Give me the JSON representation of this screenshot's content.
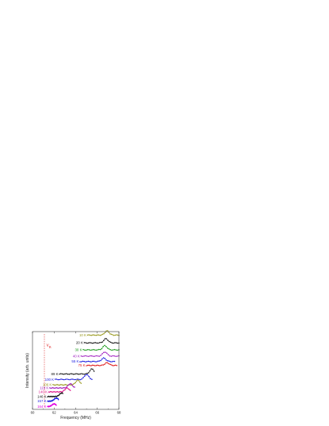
{
  "chart_data": {
    "type": "line",
    "title": "",
    "xlabel": "Frequency (MHz)",
    "ylabel": "Intensity (arb. units)",
    "xlim": [
      60,
      68
    ],
    "x_ticks": [
      "60",
      "62",
      "64",
      "66",
      "68"
    ],
    "grid": false,
    "reference_line": {
      "label": "ν",
      "subscript": "B",
      "x": 61.1,
      "color": "#e03030"
    },
    "series": [
      {
        "name": "10 K",
        "color": "#9a9a20",
        "baseline": 0.955,
        "x_start": 65.1,
        "x_end": 68.0,
        "peak_x": 66.9,
        "peak": 0.055
      },
      {
        "name": "20 K",
        "color": "#111111",
        "baseline": 0.855,
        "x_start": 64.8,
        "x_end": 68.0,
        "peak_x": 66.8,
        "peak": 0.055
      },
      {
        "name": "30 K",
        "color": "#1a9a1a",
        "baseline": 0.765,
        "x_start": 64.7,
        "x_end": 68.0,
        "peak_x": 66.7,
        "peak": 0.055
      },
      {
        "name": "40 K",
        "color": "#a020c0",
        "baseline": 0.685,
        "x_start": 64.5,
        "x_end": 68.0,
        "peak_x": 66.7,
        "peak": 0.055
      },
      {
        "name": "55 K",
        "color": "#1a1ae0",
        "baseline": 0.615,
        "x_start": 64.4,
        "x_end": 67.6,
        "peak_x": 66.6,
        "peak": 0.045
      },
      {
        "name": "75 K",
        "color": "#e02020",
        "baseline": 0.565,
        "x_start": 65.0,
        "x_end": 67.8,
        "peak_x": 66.9,
        "peak": 0.035
      },
      {
        "name": "89 K",
        "color": "#111111",
        "baseline": 0.455,
        "x_start": 62.5,
        "x_end": 65.7,
        "peak_x": 65.5,
        "peak": 0.065
      },
      {
        "name": "100 K",
        "color": "#1a1ae0",
        "baseline": 0.385,
        "x_start": 62.1,
        "x_end": 65.5,
        "peak_x": 65.0,
        "peak": 0.065
      },
      {
        "name": "106 K",
        "color": "#9a9a20",
        "baseline": 0.315,
        "x_start": 61.9,
        "x_end": 64.5,
        "peak_x": 64.2,
        "peak": 0.06
      },
      {
        "name": "119 K",
        "color": "#a020c0",
        "baseline": 0.275,
        "x_start": 61.6,
        "x_end": 63.9,
        "peak_x": 63.5,
        "peak": 0.055
      },
      {
        "name": "140 K",
        "color": "#e02090",
        "baseline": 0.225,
        "x_start": 61.5,
        "x_end": 63.5,
        "peak_x": 63.2,
        "peak": 0.05
      },
      {
        "name": "146 K",
        "color": "#111111",
        "baseline": 0.165,
        "x_start": 61.4,
        "x_end": 62.8,
        "peak_x": 62.7,
        "peak": 0.045
      },
      {
        "name": "157 K",
        "color": "#1a1ae0",
        "baseline": 0.105,
        "x_start": 61.4,
        "x_end": 62.4,
        "peak_x": 62.2,
        "peak": 0.04
      },
      {
        "name": "164 K",
        "color": "#e000e0",
        "baseline": 0.035,
        "x_start": 61.4,
        "x_end": 62.2,
        "peak_x": 62.0,
        "peak": 0.035
      }
    ]
  }
}
